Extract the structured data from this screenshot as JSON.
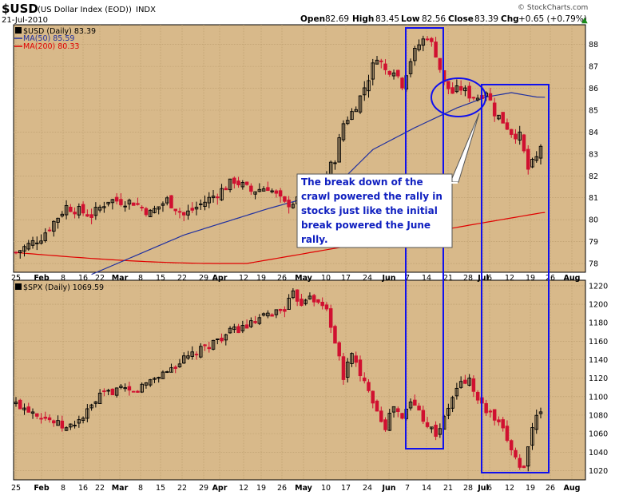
{
  "header": {
    "symbol": "$USD",
    "description": "(US Dollar Index (EOD))",
    "exchange": "INDX",
    "date": "21-Jul-2010",
    "open_label": "Open",
    "open_value": "82.69",
    "high_label": "High",
    "high_value": "83.45",
    "low_label": "Low",
    "low_value": "82.56",
    "close_label": "Close",
    "close_value": "83.39",
    "chg_label": "Chg",
    "chg_value": "+0.65 (+0.79%)",
    "chg_arrow": "▲",
    "watermark": "© StockCharts.com"
  },
  "annotation": {
    "lines": [
      "The break down of the",
      "crawl powered the rally in",
      "stocks just like the initial",
      "break powered the June",
      "rally."
    ]
  },
  "colors": {
    "panel_bg": "#d8b98a",
    "grid": "#b99a6c",
    "up_candle": "#000000",
    "down_candle": "#d01030",
    "ma50": "#2030a0",
    "ma200": "#e00000",
    "highlight": "#1010ee",
    "annotation_text": "#1020c0"
  },
  "chart_data": [
    {
      "type": "candlestick",
      "legend": [
        {
          "label": "$USD (Daily) 83.39",
          "color": "#000000"
        },
        {
          "label": "MA(50) 85.59",
          "color": "#2030a0"
        },
        {
          "label": "MA(200) 80.33",
          "color": "#e00000"
        }
      ],
      "legend_position": "top-left",
      "grid": true,
      "ylim": [
        77.6,
        88.9
      ],
      "yticks": [
        78,
        79,
        80,
        81,
        82,
        83,
        84,
        85,
        86,
        87,
        88
      ],
      "xticks": [
        "25",
        "Feb",
        "8",
        "16",
        "22",
        "Mar",
        "8",
        "15",
        "22",
        "29",
        "Apr",
        "12",
        "19",
        "26",
        "May",
        "10",
        "17",
        "24",
        "Jun",
        "7",
        "14",
        "21",
        "28",
        "Jul",
        "6",
        "12",
        "19",
        "26",
        "Aug"
      ],
      "last_close": 83.39,
      "ma50_last": 85.59,
      "ma200_last": 80.33
    },
    {
      "type": "candlestick",
      "legend": [
        {
          "label": "$SPX (Daily) 1069.59",
          "color": "#000000"
        }
      ],
      "legend_position": "top-left",
      "grid": true,
      "ylim": [
        1010,
        1226
      ],
      "yticks": [
        1020,
        1040,
        1060,
        1080,
        1100,
        1120,
        1140,
        1160,
        1180,
        1200,
        1220
      ],
      "xticks": [
        "25",
        "Feb",
        "8",
        "16",
        "22",
        "Mar",
        "8",
        "15",
        "22",
        "29",
        "Apr",
        "12",
        "19",
        "26",
        "May",
        "10",
        "17",
        "24",
        "Jun",
        "7",
        "14",
        "21",
        "28",
        "Jul",
        "6",
        "12",
        "19",
        "26",
        "Aug"
      ],
      "last_close": 1069.59
    }
  ]
}
